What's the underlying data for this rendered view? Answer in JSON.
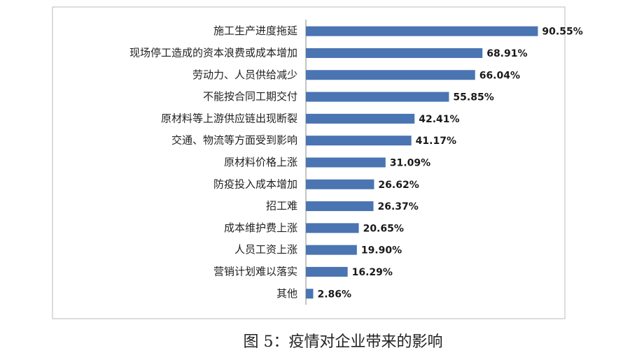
{
  "chart_data": {
    "type": "bar",
    "orientation": "horizontal",
    "caption": "图 5：疫情对企业带来的影响",
    "categories": [
      "施工生产进度拖延",
      "现场停工造成的资本浪费或成本增加",
      "劳动力、人员供给减少",
      "不能按合同工期交付",
      "原材料等上游供应链出现断裂",
      "交通、物流等方面受到影响",
      "原材料价格上涨",
      "防疫投入成本增加",
      "招工难",
      "成本维护费上涨",
      "人员工资上涨",
      "营销计划难以落实",
      "其他"
    ],
    "values": [
      90.55,
      68.91,
      66.04,
      55.85,
      42.41,
      41.17,
      31.09,
      26.62,
      26.37,
      20.65,
      19.9,
      16.29,
      2.86
    ],
    "value_labels": [
      "90.55%",
      "68.91%",
      "66.04%",
      "55.85%",
      "42.41%",
      "41.17%",
      "31.09%",
      "26.62%",
      "26.37%",
      "20.65%",
      "19.90%",
      "16.29%",
      "2.86%"
    ],
    "color": "#4a74b2",
    "xlim": [
      0,
      100
    ]
  }
}
